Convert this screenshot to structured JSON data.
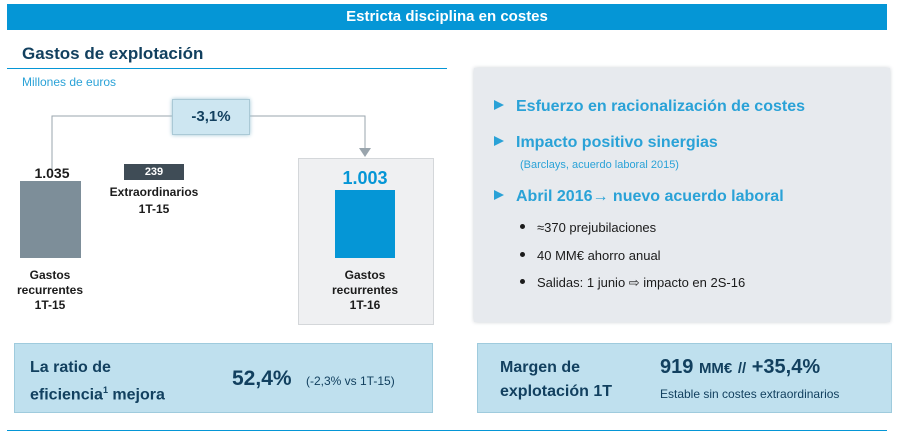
{
  "banner": {
    "title": "Estricta disciplina en costes"
  },
  "left": {
    "title": "Gastos de explotación",
    "subtitle": "Millones de euros",
    "variation": "-3,1%",
    "bar1": {
      "value": "1.035",
      "label_lines": [
        "Gastos",
        "recurrentes",
        "1T-15"
      ]
    },
    "extraordinary": {
      "value": "239",
      "label_lines": [
        "Extraordinarios",
        "1T-15"
      ]
    },
    "bar2": {
      "value": "1.003",
      "label_lines": [
        "Gastos",
        "recurrentes",
        "1T-16"
      ]
    }
  },
  "right": {
    "bullets": [
      {
        "text": "Esfuerzo en racionalización de costes"
      },
      {
        "text": "Impacto positivo sinergias",
        "note": "(Barclays, acuerdo laboral 2015)"
      },
      {
        "text": "Abril 2016→ nuevo acuerdo laboral"
      }
    ],
    "subbullets": [
      "≈370 prejubilaciones",
      "40 MM€ ahorro anual",
      "Salidas: 1 junio ⇨ impacto en 2S-16"
    ]
  },
  "ratio": {
    "label_line1": "La ratio de",
    "label_line2": "eficiencia",
    "footnote": "1",
    "label_line2_end": " mejora",
    "value": "52,4%",
    "change": "(-2,3% vs 1T-15)"
  },
  "margin": {
    "label_lines": [
      "Margen de",
      "explotación 1T"
    ],
    "value": "919",
    "unit": "MM€",
    "separator": "//",
    "growth": "+35,4%",
    "note": "Estable sin costes extraordinarios"
  },
  "colors": {
    "accent": "#0596d6",
    "navy": "#12405f",
    "grey_bar": "#7d8e99",
    "light_blue": "#bfe0ee"
  }
}
